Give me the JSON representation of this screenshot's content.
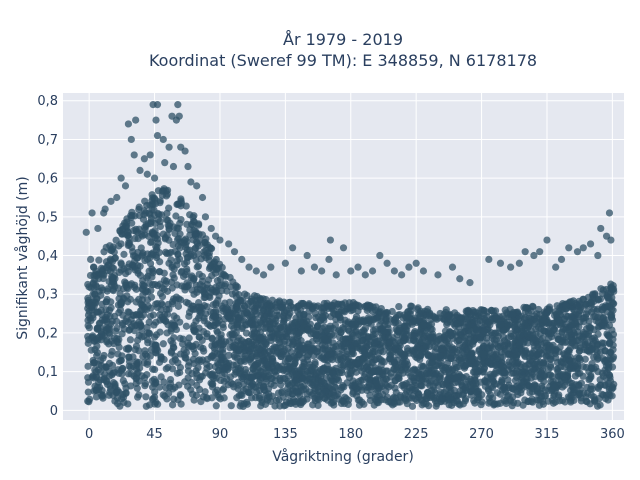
{
  "chart_data": {
    "type": "scatter",
    "title_line1": "År 1979 - 2019",
    "title_line2": "Koordinat (Sweref 99 TM): E 348859, N 6178178",
    "xlabel": "Vågriktning (grader)",
    "ylabel": "Signifikant våghöjd (m)",
    "xlim": [
      -18,
      368
    ],
    "ylim": [
      -0.025,
      0.82
    ],
    "x_ticks": [
      0,
      45,
      90,
      135,
      180,
      225,
      270,
      315,
      360
    ],
    "x_tick_labels": [
      "0",
      "45",
      "90",
      "135",
      "180",
      "225",
      "270",
      "315",
      "360"
    ],
    "y_ticks": [
      0,
      0.1,
      0.2,
      0.3,
      0.4,
      0.5,
      0.6,
      0.7,
      0.8
    ],
    "y_tick_labels": [
      "0",
      "0,1",
      "0,2",
      "0,3",
      "0,4",
      "0,5",
      "0,6",
      "0,7",
      "0,8"
    ],
    "grid": true,
    "marker_color": "#2f5167",
    "plot_bg": "#e5e8f0",
    "envelope": {
      "direction": [
        0,
        10,
        20,
        30,
        40,
        50,
        60,
        70,
        80,
        90,
        100,
        110,
        120,
        135,
        150,
        165,
        180,
        195,
        210,
        225,
        240,
        255,
        270,
        285,
        300,
        315,
        330,
        345,
        360
      ],
      "max_height": [
        0.35,
        0.42,
        0.46,
        0.52,
        0.55,
        0.58,
        0.56,
        0.52,
        0.45,
        0.38,
        0.33,
        0.3,
        0.29,
        0.28,
        0.28,
        0.28,
        0.28,
        0.27,
        0.27,
        0.27,
        0.26,
        0.26,
        0.26,
        0.26,
        0.27,
        0.27,
        0.28,
        0.3,
        0.33
      ]
    },
    "points": [
      {
        "x": 44,
        "y": 0.79
      },
      {
        "x": 47,
        "y": 0.79
      },
      {
        "x": 61,
        "y": 0.79
      },
      {
        "x": 57,
        "y": 0.76
      },
      {
        "x": 62,
        "y": 0.76
      },
      {
        "x": 46,
        "y": 0.75
      },
      {
        "x": 60,
        "y": 0.75
      },
      {
        "x": 27,
        "y": 0.74
      },
      {
        "x": 32,
        "y": 0.75
      },
      {
        "x": 29,
        "y": 0.7
      },
      {
        "x": 47,
        "y": 0.71
      },
      {
        "x": 51,
        "y": 0.7
      },
      {
        "x": 55,
        "y": 0.68
      },
      {
        "x": 63,
        "y": 0.68
      },
      {
        "x": 66,
        "y": 0.67
      },
      {
        "x": 31,
        "y": 0.66
      },
      {
        "x": 38,
        "y": 0.65
      },
      {
        "x": 42,
        "y": 0.66
      },
      {
        "x": 52,
        "y": 0.64
      },
      {
        "x": 58,
        "y": 0.63
      },
      {
        "x": 68,
        "y": 0.63
      },
      {
        "x": 35,
        "y": 0.62
      },
      {
        "x": 40,
        "y": 0.61
      },
      {
        "x": 45,
        "y": 0.6
      },
      {
        "x": 70,
        "y": 0.59
      },
      {
        "x": 74,
        "y": 0.58
      },
      {
        "x": 22,
        "y": 0.6
      },
      {
        "x": 25,
        "y": 0.58
      },
      {
        "x": 19,
        "y": 0.55
      },
      {
        "x": 78,
        "y": 0.55
      },
      {
        "x": 15,
        "y": 0.54
      },
      {
        "x": 80,
        "y": 0.5
      },
      {
        "x": 11,
        "y": 0.52
      },
      {
        "x": 2,
        "y": 0.51
      },
      {
        "x": 6,
        "y": 0.47
      },
      {
        "x": 10,
        "y": 0.51
      },
      {
        "x": 84,
        "y": 0.47
      },
      {
        "x": 87,
        "y": 0.45
      },
      {
        "x": 90,
        "y": 0.44
      },
      {
        "x": 96,
        "y": 0.43
      },
      {
        "x": 100,
        "y": 0.41
      },
      {
        "x": 105,
        "y": 0.39
      },
      {
        "x": 110,
        "y": 0.37
      },
      {
        "x": 115,
        "y": 0.36
      },
      {
        "x": 120,
        "y": 0.35
      },
      {
        "x": 125,
        "y": 0.37
      },
      {
        "x": 135,
        "y": 0.38
      },
      {
        "x": 140,
        "y": 0.42
      },
      {
        "x": 146,
        "y": 0.36
      },
      {
        "x": 150,
        "y": 0.4
      },
      {
        "x": 155,
        "y": 0.37
      },
      {
        "x": 160,
        "y": 0.36
      },
      {
        "x": 165,
        "y": 0.39
      },
      {
        "x": 166,
        "y": 0.44
      },
      {
        "x": 170,
        "y": 0.35
      },
      {
        "x": 175,
        "y": 0.42
      },
      {
        "x": 180,
        "y": 0.36
      },
      {
        "x": 185,
        "y": 0.37
      },
      {
        "x": 190,
        "y": 0.35
      },
      {
        "x": 195,
        "y": 0.36
      },
      {
        "x": 200,
        "y": 0.4
      },
      {
        "x": 205,
        "y": 0.38
      },
      {
        "x": 210,
        "y": 0.36
      },
      {
        "x": 215,
        "y": 0.35
      },
      {
        "x": 220,
        "y": 0.37
      },
      {
        "x": 225,
        "y": 0.38
      },
      {
        "x": 230,
        "y": 0.36
      },
      {
        "x": 240,
        "y": 0.35
      },
      {
        "x": 250,
        "y": 0.37
      },
      {
        "x": 255,
        "y": 0.34
      },
      {
        "x": 262,
        "y": 0.33
      },
      {
        "x": 275,
        "y": 0.39
      },
      {
        "x": 283,
        "y": 0.38
      },
      {
        "x": 290,
        "y": 0.37
      },
      {
        "x": 296,
        "y": 0.38
      },
      {
        "x": 300,
        "y": 0.41
      },
      {
        "x": 306,
        "y": 0.4
      },
      {
        "x": 310,
        "y": 0.41
      },
      {
        "x": 315,
        "y": 0.44
      },
      {
        "x": 321,
        "y": 0.37
      },
      {
        "x": 325,
        "y": 0.39
      },
      {
        "x": 330,
        "y": 0.42
      },
      {
        "x": 336,
        "y": 0.41
      },
      {
        "x": 340,
        "y": 0.42
      },
      {
        "x": 345,
        "y": 0.43
      },
      {
        "x": 350,
        "y": 0.4
      },
      {
        "x": 352,
        "y": 0.47
      },
      {
        "x": 356,
        "y": 0.45
      },
      {
        "x": 358,
        "y": 0.51
      },
      {
        "x": 359,
        "y": 0.44
      },
      {
        "x": -2,
        "y": 0.46
      },
      {
        "x": 1,
        "y": 0.39
      },
      {
        "x": 3,
        "y": 0.37
      }
    ]
  }
}
